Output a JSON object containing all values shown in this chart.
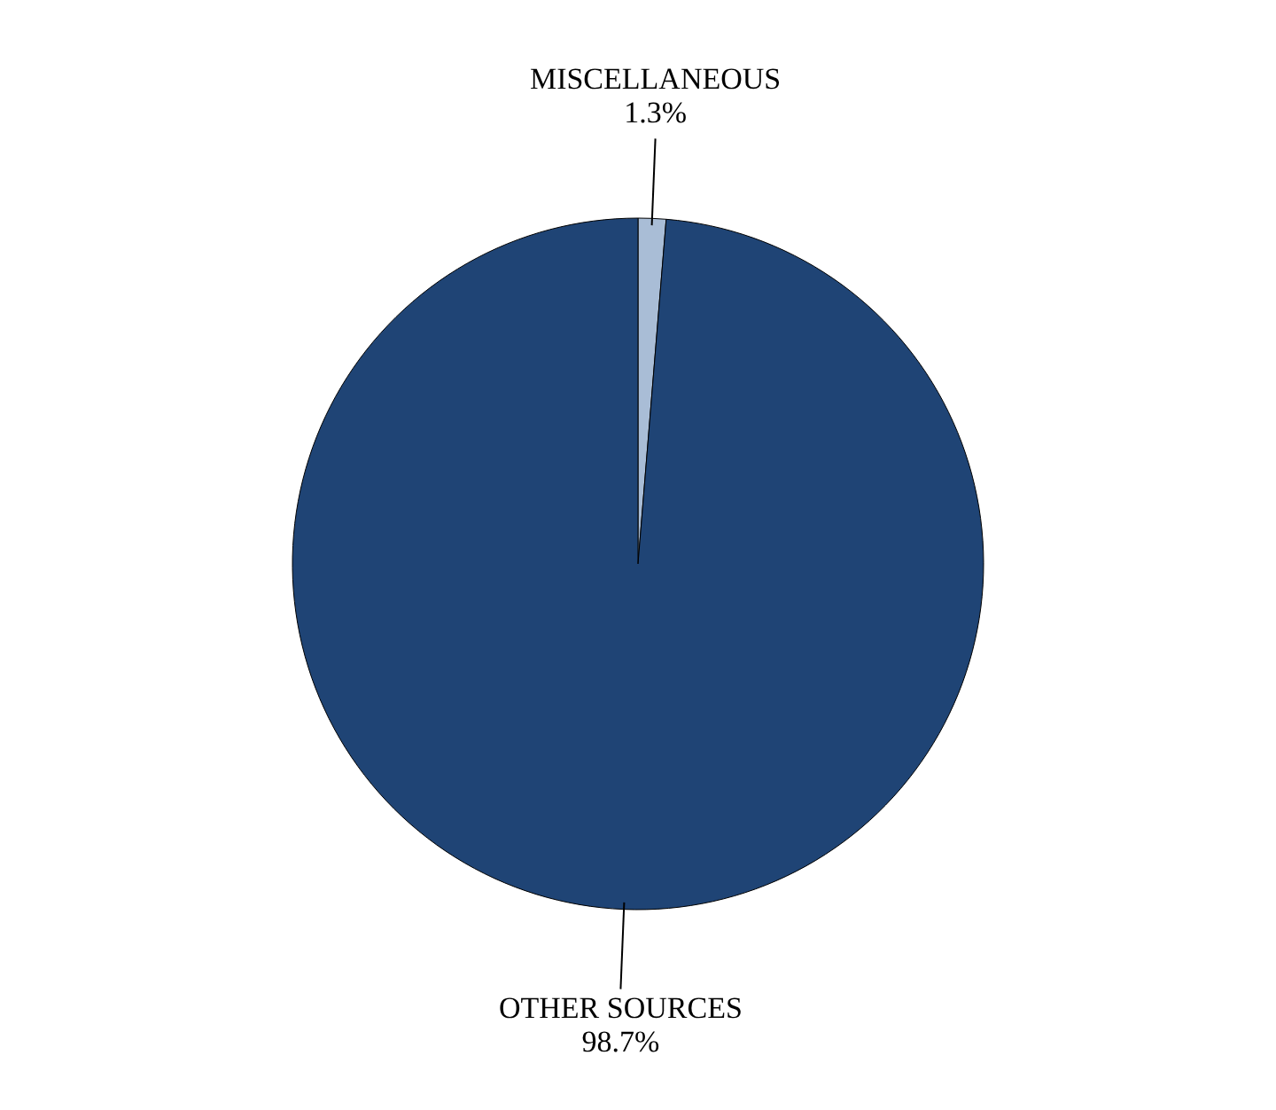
{
  "chart_data": {
    "type": "pie",
    "categories": [
      "MISCELLANEOUS",
      "OTHER SOURCES"
    ],
    "values": [
      1.3,
      98.7
    ],
    "colors": [
      "#a9bdd6",
      "#1f4475"
    ],
    "value_labels": [
      "1.3%",
      "98.7%"
    ]
  }
}
